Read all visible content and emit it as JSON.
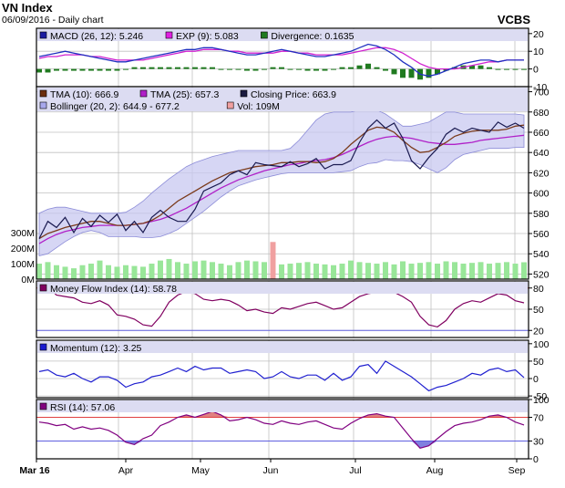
{
  "header": {
    "title": "VN Index",
    "subtitle": "06/09/2016 - Daily chart",
    "brand": "VCBS"
  },
  "colors": {
    "panel_bg": "#ffffff",
    "grid": "#c0c0c0",
    "border": "#000000",
    "legend_bg": "#dcdcf2",
    "macd": "#2030c0",
    "exp": "#d020d0",
    "divergence": "#1f7a1f",
    "tma10": "#7a3a1a",
    "tma25": "#b020c8",
    "close": "#1a1a50",
    "bollinger_fill": "#c8c8f0",
    "bollinger_line": "#8c8cd8",
    "volume": "#99e699",
    "volume_hi": "#f0a0a0",
    "mfi": "#800060",
    "momentum": "#2020d0",
    "rsi": "#800080",
    "over_line": "#e04040",
    "under_line": "#6060e0",
    "fill_over": "#e08080",
    "fill_under": "#8080e0"
  },
  "x_labels": [
    "Mar 16",
    "Apr",
    "May",
    "Jun",
    "Jul",
    "Aug",
    "Sep"
  ],
  "chart_data": [
    {
      "type": "line",
      "panel": "macd",
      "legend": [
        {
          "label": "MACD (26, 12): 5.246",
          "swatch": "#1a1aa0"
        },
        {
          "label": "EXP (9): 5.083",
          "swatch": "#e020e0"
        },
        {
          "label": "Divergence: 0.1635",
          "swatch": "#1f7a1f"
        }
      ],
      "ylim": [
        -10,
        23
      ],
      "yticks": [
        20,
        10,
        0,
        -10
      ],
      "macd": [
        7,
        8,
        9,
        10,
        9,
        8,
        7,
        6,
        5,
        4,
        4,
        5,
        6,
        7,
        8,
        9,
        10,
        11,
        11,
        12,
        12,
        11,
        10,
        9,
        8,
        8,
        9,
        10,
        11,
        10,
        9,
        8,
        7,
        7,
        8,
        9,
        10,
        12,
        14,
        13,
        11,
        8,
        4,
        1,
        -3,
        -4,
        -3,
        -1,
        1,
        3,
        4,
        5,
        5,
        4,
        5,
        5,
        5
      ],
      "exp": [
        6,
        7,
        7,
        8,
        8,
        8,
        7,
        7,
        6,
        5,
        5,
        5,
        5,
        6,
        7,
        8,
        9,
        10,
        10,
        11,
        11,
        11,
        10,
        10,
        9,
        9,
        9,
        9,
        10,
        10,
        9,
        9,
        8,
        8,
        8,
        8,
        9,
        10,
        11,
        12,
        12,
        11,
        9,
        6,
        3,
        1,
        0,
        0,
        0,
        1,
        2,
        3,
        4,
        4,
        5,
        5,
        5
      ],
      "divergence": [
        -2,
        -2,
        -1,
        -1,
        -1,
        -1,
        -1,
        -1,
        -1,
        -1,
        0,
        1,
        1,
        1,
        1,
        1,
        1,
        1,
        1,
        1,
        1,
        0,
        0,
        0,
        -1,
        -1,
        0,
        1,
        1,
        0,
        0,
        -1,
        -1,
        -1,
        0,
        1,
        1,
        2,
        3,
        1,
        -1,
        -3,
        -5,
        -5,
        -6,
        -5,
        -3,
        -1,
        1,
        2,
        2,
        2,
        1,
        0,
        0,
        0,
        0
      ]
    },
    {
      "type": "line",
      "panel": "price",
      "legend": [
        {
          "label": "TMA (10): 666.9",
          "swatch": "#6b2e0e"
        },
        {
          "label": "TMA (25): 657.3",
          "swatch": "#b020c8"
        },
        {
          "label": "Closing Price: 663.9",
          "swatch": "#1a1a40"
        },
        {
          "label": "Bollinger (20, 2): 644.9 - 677.2",
          "swatch": "#a8a8ec"
        },
        {
          "label": "Vol: 109M",
          "swatch": "#f0a0a0"
        }
      ],
      "ylim": [
        515,
        705
      ],
      "yticks": [
        700,
        680,
        660,
        640,
        620,
        600,
        580,
        560,
        540,
        520
      ],
      "vol_ticks": [
        "300M",
        "200M",
        "100M",
        "0M"
      ],
      "vol_tick_values": [
        300,
        200,
        100,
        0
      ],
      "close": [
        555,
        572,
        566,
        576,
        561,
        575,
        567,
        578,
        571,
        579,
        563,
        572,
        561,
        576,
        583,
        576,
        572,
        572,
        584,
        602,
        606,
        610,
        618,
        622,
        618,
        630,
        628,
        627,
        626,
        631,
        626,
        629,
        634,
        624,
        628,
        628,
        632,
        650,
        664,
        672,
        664,
        669,
        654,
        632,
        624,
        635,
        644,
        658,
        664,
        660,
        664,
        662,
        660,
        670,
        665,
        669,
        664
      ],
      "tma10": [
        555,
        560,
        563,
        566,
        568,
        570,
        572,
        572,
        570,
        568,
        568,
        569,
        570,
        573,
        578,
        585,
        592,
        597,
        602,
        607,
        612,
        616,
        620,
        622,
        624,
        626,
        627,
        628,
        630,
        630,
        631,
        631,
        630,
        631,
        634,
        640,
        648,
        655,
        662,
        665,
        664,
        660,
        652,
        645,
        640,
        641,
        645,
        650,
        656,
        659,
        661,
        662,
        662,
        662,
        663,
        666,
        667
      ],
      "tma25": [
        550,
        555,
        559,
        562,
        564,
        566,
        567,
        568,
        568,
        568,
        568,
        569,
        570,
        572,
        574,
        577,
        581,
        585,
        590,
        595,
        600,
        605,
        609,
        613,
        616,
        619,
        622,
        624,
        626,
        628,
        629,
        631,
        632,
        633,
        635,
        638,
        642,
        646,
        650,
        653,
        655,
        656,
        655,
        654,
        652,
        650,
        649,
        648,
        648,
        649,
        650,
        652,
        653,
        654,
        655,
        656,
        657
      ],
      "boll_up": [
        580,
        584,
        586,
        586,
        584,
        582,
        580,
        580,
        580,
        580,
        581,
        586,
        592,
        600,
        607,
        614,
        620,
        626,
        630,
        633,
        636,
        638,
        640,
        642,
        642,
        642,
        642,
        642,
        642,
        644,
        652,
        662,
        672,
        678,
        680,
        680,
        680,
        682,
        683,
        682,
        678,
        672,
        666,
        666,
        668,
        670,
        675,
        680,
        680,
        678,
        678,
        678,
        678,
        678,
        678,
        678,
        677
      ],
      "boll_dn": [
        538,
        540,
        546,
        552,
        557,
        561,
        563,
        561,
        557,
        557,
        557,
        557,
        556,
        556,
        557,
        560,
        564,
        570,
        576,
        582,
        589,
        596,
        602,
        607,
        610,
        613,
        615,
        617,
        619,
        620,
        620,
        620,
        620,
        620,
        620,
        621,
        622,
        626,
        629,
        630,
        633,
        632,
        632,
        631,
        628,
        624,
        620,
        625,
        633,
        638,
        640,
        642,
        644,
        644,
        644,
        645,
        645
      ],
      "volume": [
        100,
        110,
        90,
        80,
        70,
        90,
        100,
        120,
        90,
        80,
        90,
        85,
        80,
        100,
        120,
        130,
        110,
        100,
        115,
        120,
        110,
        100,
        90,
        110,
        120,
        115,
        110,
        100,
        95,
        100,
        105,
        110,
        100,
        95,
        90,
        100,
        120,
        110,
        105,
        100,
        110,
        95,
        115,
        100,
        105,
        110,
        100,
        115,
        110,
        100,
        105,
        110,
        100,
        105,
        110,
        100,
        109
      ],
      "volume_hi_index": [
        27
      ]
    },
    {
      "type": "line",
      "panel": "mfi",
      "legend": [
        {
          "label": "Money Flow Index (14): 58.78",
          "swatch": "#800060"
        }
      ],
      "ylim": [
        10,
        90
      ],
      "yticks": [
        80,
        50,
        20
      ],
      "levels": [
        80,
        20
      ],
      "values": [
        80,
        82,
        70,
        68,
        66,
        60,
        58,
        62,
        56,
        42,
        40,
        36,
        28,
        26,
        40,
        60,
        70,
        75,
        72,
        64,
        62,
        64,
        62,
        56,
        48,
        50,
        46,
        44,
        52,
        50,
        54,
        58,
        60,
        55,
        50,
        52,
        60,
        68,
        72,
        74,
        78,
        74,
        68,
        60,
        40,
        28,
        25,
        34,
        50,
        58,
        62,
        60,
        66,
        72,
        70,
        62,
        59
      ]
    },
    {
      "type": "line",
      "panel": "momentum",
      "legend": [
        {
          "label": "Momentum (12): 3.25",
          "swatch": "#1a1ad0"
        }
      ],
      "ylim": [
        -55,
        110
      ],
      "yticks": [
        100,
        50,
        0,
        -50
      ],
      "values": [
        20,
        25,
        10,
        5,
        15,
        0,
        -10,
        5,
        5,
        -5,
        -25,
        -15,
        -10,
        5,
        10,
        20,
        30,
        20,
        35,
        25,
        30,
        30,
        15,
        20,
        25,
        20,
        0,
        5,
        20,
        5,
        0,
        10,
        10,
        -5,
        15,
        -5,
        5,
        35,
        40,
        15,
        50,
        35,
        20,
        5,
        -15,
        -35,
        -25,
        -20,
        -10,
        0,
        15,
        10,
        25,
        30,
        20,
        25,
        3
      ]
    },
    {
      "type": "line",
      "panel": "rsi",
      "legend": [
        {
          "label": "RSI (14): 57.06",
          "swatch": "#800080"
        }
      ],
      "ylim": [
        0,
        100
      ],
      "yticks": [
        100,
        70,
        30,
        0
      ],
      "levels": [
        70,
        30
      ],
      "values": [
        62,
        60,
        56,
        58,
        50,
        54,
        50,
        52,
        48,
        40,
        28,
        24,
        34,
        40,
        56,
        62,
        70,
        74,
        70,
        75,
        80,
        74,
        64,
        66,
        70,
        66,
        60,
        58,
        64,
        60,
        58,
        62,
        64,
        58,
        52,
        50,
        60,
        68,
        74,
        76,
        72,
        70,
        52,
        34,
        18,
        22,
        34,
        46,
        56,
        60,
        62,
        66,
        72,
        74,
        70,
        62,
        57
      ]
    }
  ]
}
